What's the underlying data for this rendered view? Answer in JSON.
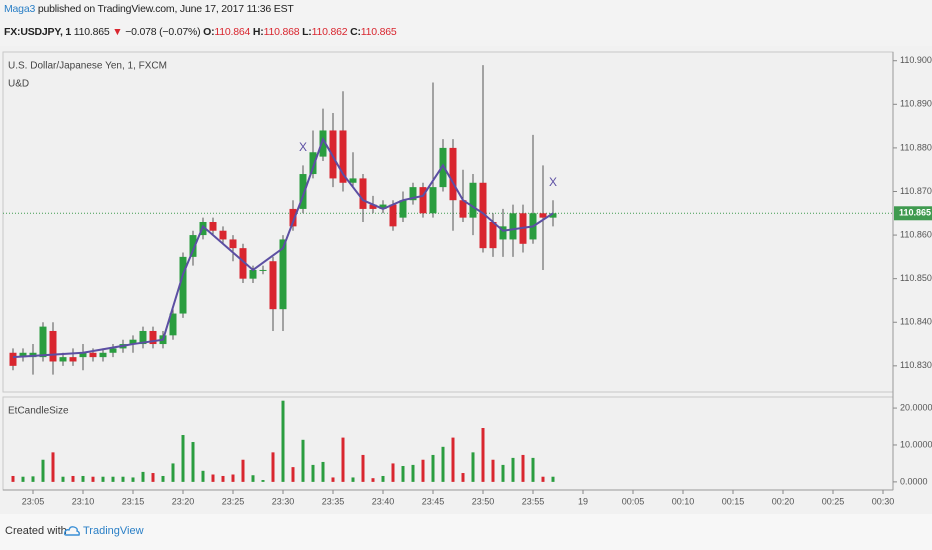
{
  "header": {
    "author": "Maga3",
    "published": "published on TradingView.com, June 17, 2017 11:36 EST",
    "symbol": "FX:USDJPY, 1",
    "last": "110.865",
    "arrow": "▼",
    "change": "−0.078 (−0.07%)",
    "o_label": "O:",
    "o": "110.864",
    "h_label": "H:",
    "h": "110.868",
    "l_label": "L:",
    "l": "110.862",
    "c_label": "C:",
    "c": "110.865"
  },
  "footer": {
    "text": "Created with",
    "brand": "TradingView"
  },
  "chart_data": [
    {
      "type": "candlestick",
      "title": "U.S. Dollar/Japanese Yen, 1, FXCM",
      "x": [
        "23:03",
        "23:04",
        "23:05",
        "23:06",
        "23:07",
        "23:08",
        "23:09",
        "23:10",
        "23:11",
        "23:12",
        "23:13",
        "23:14",
        "23:15",
        "23:16",
        "23:17",
        "23:18",
        "23:19",
        "23:20",
        "23:21",
        "23:22",
        "23:23",
        "23:24",
        "23:25",
        "23:26",
        "23:27",
        "23:28",
        "23:29",
        "23:30",
        "23:31",
        "23:32",
        "23:33",
        "23:34",
        "23:35",
        "23:36",
        "23:37",
        "23:38",
        "23:39",
        "23:40",
        "23:41",
        "23:42",
        "23:43",
        "23:44",
        "23:45",
        "23:46",
        "23:47",
        "23:48",
        "23:49",
        "23:50",
        "23:51",
        "23:52",
        "23:53",
        "23:54",
        "23:55",
        "23:56",
        "23:57"
      ],
      "open": [
        110.833,
        110.832,
        110.832,
        110.832,
        110.838,
        110.831,
        110.832,
        110.832,
        110.833,
        110.832,
        110.833,
        110.834,
        110.835,
        110.835,
        110.838,
        110.835,
        110.837,
        110.842,
        110.855,
        110.86,
        110.863,
        110.861,
        110.859,
        110.857,
        110.85,
        110.852,
        110.854,
        110.843,
        110.866,
        110.866,
        110.874,
        110.878,
        110.884,
        110.884,
        110.872,
        110.873,
        110.867,
        110.866,
        110.867,
        110.864,
        110.868,
        110.871,
        110.865,
        110.871,
        110.88,
        110.868,
        110.864,
        110.872,
        110.863,
        110.859,
        110.859,
        110.865,
        110.859,
        110.865,
        110.864
      ],
      "high": [
        110.834,
        110.834,
        110.835,
        110.84,
        110.84,
        110.833,
        110.834,
        110.835,
        110.834,
        110.834,
        110.835,
        110.836,
        110.837,
        110.839,
        110.839,
        110.838,
        110.843,
        110.856,
        110.861,
        110.864,
        110.864,
        110.862,
        110.86,
        110.858,
        110.853,
        110.853,
        110.855,
        110.86,
        110.868,
        110.876,
        110.884,
        110.889,
        110.888,
        110.893,
        110.879,
        110.874,
        110.869,
        110.868,
        110.868,
        110.87,
        110.872,
        110.872,
        110.895,
        110.882,
        110.882,
        110.875,
        110.874,
        110.899,
        110.865,
        110.866,
        110.867,
        110.867,
        110.883,
        110.876,
        110.868
      ],
      "low": [
        110.829,
        110.831,
        110.828,
        110.831,
        110.828,
        110.83,
        110.83,
        110.829,
        110.831,
        110.831,
        110.832,
        110.833,
        110.833,
        110.834,
        110.834,
        110.834,
        110.836,
        110.841,
        110.853,
        110.859,
        110.86,
        110.858,
        110.854,
        110.849,
        110.849,
        110.851,
        110.838,
        110.838,
        110.861,
        110.865,
        110.873,
        110.877,
        110.871,
        110.87,
        110.871,
        110.863,
        110.865,
        110.865,
        110.861,
        110.863,
        110.867,
        110.864,
        110.864,
        110.87,
        110.861,
        110.863,
        110.86,
        110.856,
        110.855,
        110.855,
        110.855,
        110.856,
        110.858,
        110.852,
        110.862
      ],
      "close": [
        110.83,
        110.833,
        110.833,
        110.839,
        110.831,
        110.832,
        110.831,
        110.833,
        110.832,
        110.833,
        110.834,
        110.835,
        110.836,
        110.838,
        110.835,
        110.837,
        110.842,
        110.855,
        110.86,
        110.863,
        110.861,
        110.859,
        110.857,
        110.85,
        110.852,
        110.852,
        110.843,
        110.859,
        110.862,
        110.874,
        110.879,
        110.884,
        110.873,
        110.872,
        110.873,
        110.866,
        110.866,
        110.867,
        110.862,
        110.868,
        110.871,
        110.865,
        110.871,
        110.88,
        110.868,
        110.864,
        110.872,
        110.857,
        110.857,
        110.862,
        110.865,
        110.858,
        110.865,
        110.864,
        110.865
      ],
      "up_color": "#2a9d3f",
      "down_color": "#d9262f",
      "ylim": [
        110.824,
        110.902
      ],
      "yticks": [
        {
          "value": 110.83,
          "label": "110.830"
        },
        {
          "value": 110.84,
          "label": "110.840"
        },
        {
          "value": 110.85,
          "label": "110.850"
        },
        {
          "value": 110.86,
          "label": "110.860"
        },
        {
          "value": 110.87,
          "label": "110.870"
        },
        {
          "value": 110.88,
          "label": "110.880"
        },
        {
          "value": 110.89,
          "label": "110.890"
        },
        {
          "value": 110.9,
          "label": "110.900"
        }
      ],
      "last_price": 110.865,
      "last_color": "#3f9a4f",
      "overlay": {
        "name": "U&D",
        "color": "#5c4fa3",
        "x": [
          "23:03",
          "23:10",
          "23:15",
          "23:18",
          "23:20",
          "23:22",
          "23:27",
          "23:30",
          "23:32",
          "23:34",
          "23:36",
          "23:38",
          "23:40",
          "23:42",
          "23:44",
          "23:46",
          "23:48",
          "23:50",
          "23:52",
          "23:55",
          "23:57"
        ],
        "values": [
          110.832,
          110.833,
          110.835,
          110.836,
          110.851,
          110.862,
          110.852,
          110.857,
          110.869,
          110.882,
          110.874,
          110.868,
          110.866,
          110.868,
          110.869,
          110.876,
          110.868,
          110.865,
          110.861,
          110.862,
          110.865
        ]
      },
      "markers": {
        "label": "X",
        "color": "#5c4fa3",
        "x": [
          "23:32",
          "23:57"
        ],
        "values": [
          110.88,
          110.872
        ]
      },
      "xticks": [
        "23:05",
        "23:10",
        "23:15",
        "23:20",
        "23:25",
        "23:30",
        "23:35",
        "23:40",
        "23:45",
        "23:50",
        "23:55",
        "19",
        "00:05",
        "00:10",
        "00:15",
        "00:20",
        "00:25",
        "00:30"
      ]
    },
    {
      "type": "bar",
      "title": "EtCandleSize",
      "values": [
        1.6,
        1.4,
        1.5,
        6,
        8,
        1.4,
        1.6,
        1.6,
        1.4,
        1.4,
        1.4,
        1.4,
        1.2,
        2.7,
        2.4,
        1.6,
        5,
        12.7,
        10.8,
        3,
        2,
        1.6,
        2,
        6,
        1.8,
        0.5,
        8,
        22,
        4,
        11.4,
        4.6,
        5.4,
        1.2,
        12,
        1.2,
        7.3,
        1,
        1.6,
        5,
        4.3,
        4.6,
        6,
        7.3,
        9.5,
        12,
        2.4,
        8,
        14.6,
        6,
        4.6,
        6.5,
        7.3,
        6.5,
        1.4,
        1.4
      ],
      "ylim": [
        -2.2,
        23
      ],
      "yticks": [
        {
          "value": 0,
          "label": "0.0000"
        },
        {
          "value": 10,
          "label": "10.0000"
        },
        {
          "value": 20,
          "label": "20.0000"
        }
      ]
    }
  ]
}
